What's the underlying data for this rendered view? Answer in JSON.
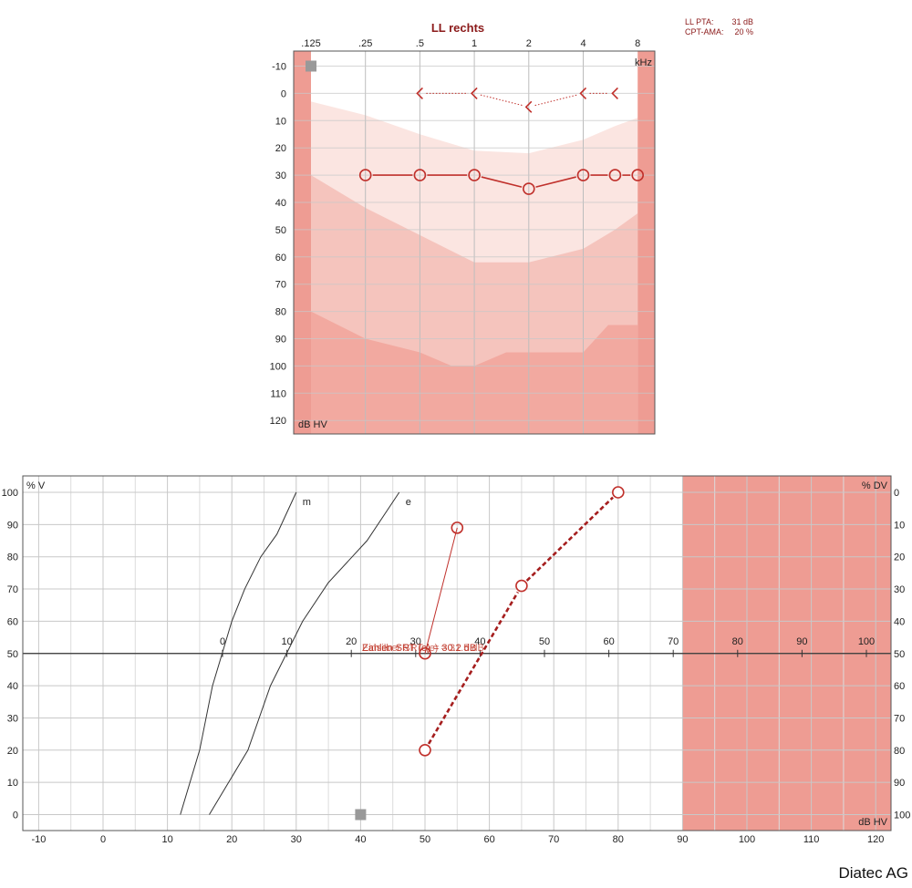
{
  "colors": {
    "banana_light": "#fbe5e1",
    "banana_mid": "#f5c4bd",
    "banana_dark": "#f2a9a0",
    "border_band": "#ee9c93",
    "mark": "#c0302b",
    "mark_dark": "#a51e1e",
    "masking_square": "#999999"
  },
  "brand": "Diatec AG",
  "chart_data": [
    {
      "type": "line",
      "title": "LL rechts",
      "info": [
        {
          "label": "LL PTA:",
          "value": "31 dB"
        },
        {
          "label": "CPT-AMA:",
          "value": "20 %"
        }
      ],
      "x_ticks": [
        ".125",
        ".25",
        ".5",
        "1",
        "2",
        "4",
        "8"
      ],
      "x_unit": "kHz",
      "y_ticks": [
        -10,
        0,
        10,
        20,
        30,
        40,
        50,
        60,
        70,
        80,
        90,
        100,
        110,
        120
      ],
      "y_unit": "dB HV",
      "ylim": [
        -15,
        125
      ],
      "zones": {
        "speech_light_top": [
          [
            0.125,
            3
          ],
          [
            0.25,
            8
          ],
          [
            0.5,
            15
          ],
          [
            1,
            21
          ],
          [
            2,
            22
          ],
          [
            4,
            17
          ],
          [
            6,
            12
          ],
          [
            8,
            9
          ]
        ],
        "speech_mid_top": [
          [
            0.125,
            30
          ],
          [
            0.25,
            42
          ],
          [
            0.5,
            52
          ],
          [
            1,
            62
          ],
          [
            2,
            62
          ],
          [
            4,
            57
          ],
          [
            6,
            50
          ],
          [
            8,
            44
          ]
        ],
        "loud_top": [
          [
            0.125,
            80
          ],
          [
            0.25,
            90
          ],
          [
            0.5,
            95
          ],
          [
            0.75,
            100
          ],
          [
            1,
            100
          ],
          [
            1.5,
            95
          ],
          [
            2,
            95
          ],
          [
            4,
            95
          ],
          [
            5.5,
            85
          ],
          [
            8,
            85
          ]
        ]
      },
      "series": [
        {
          "marker": "circle",
          "points": [
            [
              0.25,
              30
            ],
            [
              0.5,
              30
            ],
            [
              1,
              30
            ],
            [
              2,
              35
            ],
            [
              4,
              30
            ],
            [
              6,
              30
            ],
            [
              8,
              30
            ]
          ]
        },
        {
          "marker": "chevron-left",
          "points": [
            [
              0.5,
              0
            ],
            [
              1,
              0
            ],
            [
              2,
              5
            ],
            [
              4,
              0
            ],
            [
              6,
              0
            ]
          ]
        }
      ],
      "masking_marker": [
        0.125,
        -10
      ]
    },
    {
      "type": "line",
      "x_ticks": [
        -10,
        0,
        10,
        20,
        30,
        40,
        50,
        60,
        70,
        80,
        90,
        100,
        110,
        120
      ],
      "x_unit": "dB HV",
      "top_ticks": [
        0,
        10,
        20,
        30,
        40,
        50,
        60,
        70,
        80,
        90,
        100
      ],
      "y_left_ticks": [
        100,
        90,
        80,
        70,
        60,
        50,
        40,
        30,
        20,
        10,
        0
      ],
      "y_left_unit": "% V",
      "y_right_ticks": [
        0,
        10,
        20,
        30,
        40,
        50,
        60,
        70,
        80,
        90,
        100
      ],
      "y_right_unit": "% DV",
      "xlim": [
        -15,
        122
      ],
      "ylim": [
        -5,
        105
      ],
      "shaded_range": [
        90,
        122
      ],
      "reference_curves": [
        {
          "name": "m",
          "points": [
            [
              12,
              0
            ],
            [
              15,
              20
            ],
            [
              17,
              40
            ],
            [
              20,
              60
            ],
            [
              22,
              70
            ],
            [
              24.5,
              80
            ],
            [
              27,
              87
            ],
            [
              30,
              100
            ]
          ]
        },
        {
          "name": "e",
          "points": [
            [
              16.5,
              0
            ],
            [
              19.5,
              10
            ],
            [
              22.5,
              20
            ],
            [
              26,
              40
            ],
            [
              28.5,
              50
            ],
            [
              31,
              60
            ],
            [
              35,
              72
            ],
            [
              41,
              85
            ],
            [
              46,
              100
            ]
          ]
        }
      ],
      "series": [
        {
          "style": "solid-thin",
          "points": [
            [
              50,
              50
            ],
            [
              55,
              89
            ]
          ]
        },
        {
          "style": "dashed-thick",
          "points": [
            [
              50,
              20
            ],
            [
              65,
              71
            ],
            [
              80,
              100
            ]
          ]
        }
      ],
      "annotation": "Zahlen SRT (e) = 30.2 dB",
      "annotation_overlay": "Einsilber SRT (e) = 31.5 dB",
      "masking_marker": [
        40,
        0
      ]
    }
  ]
}
